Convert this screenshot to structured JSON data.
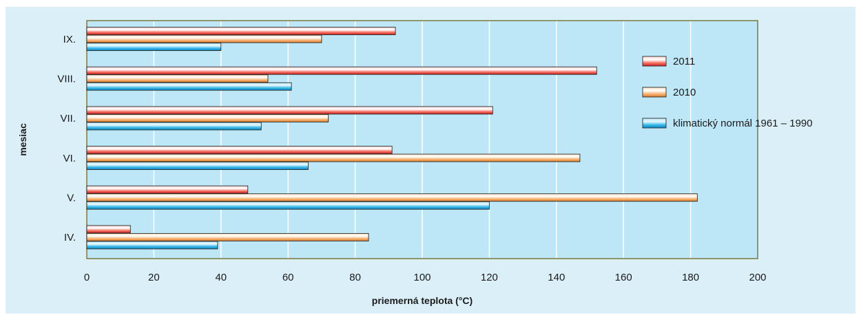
{
  "chart_data": {
    "type": "bar",
    "orientation": "horizontal",
    "title": "",
    "xlabel": "priemerná teplota (°C)",
    "ylabel": "mesiac",
    "categories": [
      "IV.",
      "V.",
      "VI.",
      "VII.",
      "VIII.",
      "IX."
    ],
    "xlim": [
      0,
      200
    ],
    "xticks": [
      "0",
      "20",
      "40",
      "60",
      "80",
      "100",
      "120",
      "140",
      "160",
      "180",
      "200"
    ],
    "grid": "vertical",
    "legend_position": "right",
    "series": [
      {
        "name": "2011",
        "color": "#e83c3c",
        "values": [
          13,
          48,
          91,
          121,
          152,
          92
        ]
      },
      {
        "name": "2010",
        "color": "#f29a48",
        "values": [
          84,
          182,
          147,
          72,
          54,
          70
        ]
      },
      {
        "name": "klimatický normál 1961 – 1990",
        "color": "#1da5dc",
        "values": [
          39,
          120,
          66,
          52,
          61,
          40
        ]
      }
    ]
  }
}
